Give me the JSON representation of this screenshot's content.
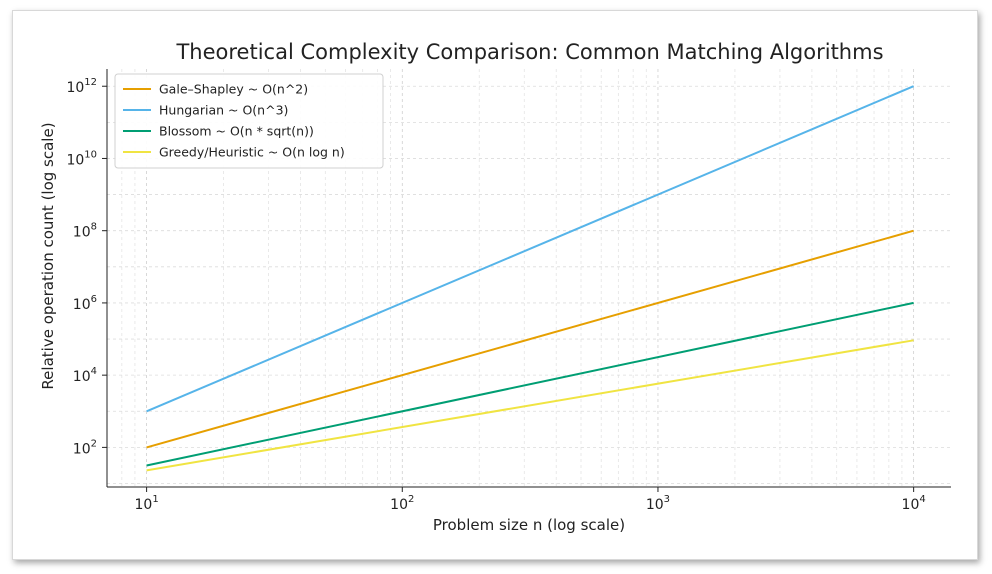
{
  "chart_data": {
    "type": "line",
    "title": "Theoretical Complexity Comparison: Common Matching Algorithms",
    "xlabel": "Problem size n (log scale)",
    "ylabel": "Relative operation count (log scale)",
    "xscale": "log",
    "yscale": "log",
    "xlim": [
      7,
      14000
    ],
    "ylim": [
      8,
      3000000000000
    ],
    "x": [
      10,
      10000
    ],
    "xticks": [
      {
        "base": "10",
        "exp": "1"
      },
      {
        "base": "10",
        "exp": "2"
      },
      {
        "base": "10",
        "exp": "3"
      },
      {
        "base": "10",
        "exp": "4"
      }
    ],
    "yticks": [
      {
        "base": "10",
        "exp": "2"
      },
      {
        "base": "10",
        "exp": "4"
      },
      {
        "base": "10",
        "exp": "6"
      },
      {
        "base": "10",
        "exp": "8"
      },
      {
        "base": "10",
        "exp": "10"
      },
      {
        "base": "10",
        "exp": "12"
      }
    ],
    "grid": true,
    "legend_position": "top-left",
    "series": [
      {
        "name": "Gale–Shapley ~ O(n^2)",
        "color": "#E69F00",
        "values": [
          100,
          100000000
        ]
      },
      {
        "name": "Hungarian ~ O(n^3)",
        "color": "#56B4E9",
        "values": [
          1000,
          1000000000000
        ]
      },
      {
        "name": "Blossom ~ O(n * sqrt(n))",
        "color": "#009E73",
        "values": [
          31.6,
          1000000
        ]
      },
      {
        "name": "Greedy/Heuristic ~ O(n log n)",
        "color": "#F0E442",
        "values": [
          23,
          92103
        ]
      }
    ]
  }
}
